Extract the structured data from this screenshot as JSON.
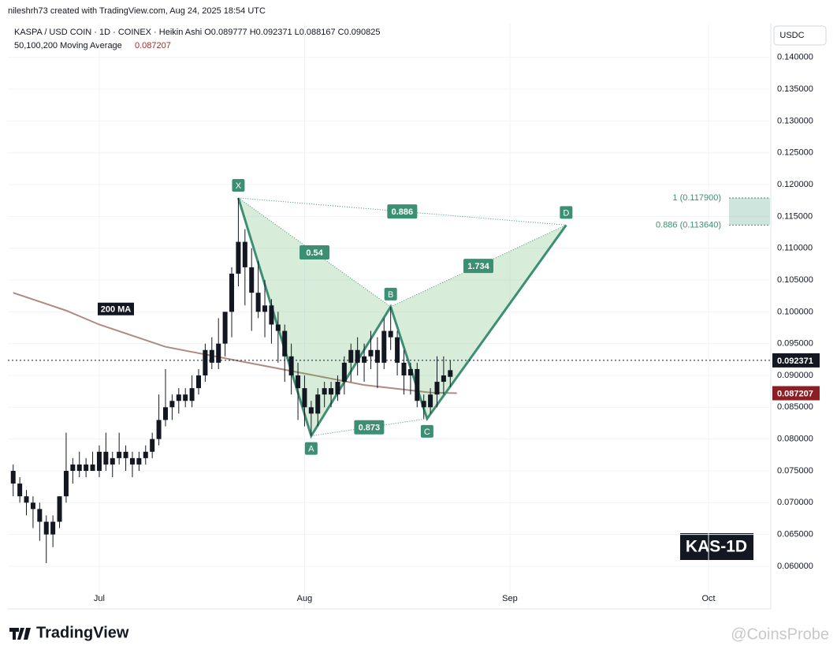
{
  "chart_data": {
    "type": "candlestick",
    "credit": "nileshrh73 created with TradingView.com, Aug 24, 2025 18:54 UTC",
    "title": "KASPA / USD COIN · 1D · COINEX · Heikin Ashi  O0.089777 H0.092371 L0.088167 C0.090825",
    "indicator": "50,100,200 Moving Average",
    "currency": "USDC",
    "badge": "KAS-1D",
    "brand": "TradingView",
    "watermark": "@CoinsProbe",
    "color": "#131722",
    "xlim": [
      -13.8,
      101.4
    ],
    "xticks": [
      {
        "value": 0,
        "label": "Jul"
      },
      {
        "value": 31,
        "label": "Aug"
      },
      {
        "value": 62,
        "label": "Sep"
      },
      {
        "value": 92,
        "label": "Oct"
      }
    ],
    "ylim": [
      0.0533,
      0.1453
    ],
    "yticks": [
      {
        "value": 0.06,
        "label": "0.060000"
      },
      {
        "value": 0.065,
        "label": "0.065000"
      },
      {
        "value": 0.07,
        "label": "0.070000"
      },
      {
        "value": 0.075,
        "label": "0.075000"
      },
      {
        "value": 0.08,
        "label": "0.080000"
      },
      {
        "value": 0.085,
        "label": "0.085000"
      },
      {
        "value": 0.09,
        "label": "0.090000"
      },
      {
        "value": 0.095,
        "label": "0.095000"
      },
      {
        "value": 0.1,
        "label": "0.100000"
      },
      {
        "value": 0.105,
        "label": "0.105000"
      },
      {
        "value": 0.11,
        "label": "0.110000"
      },
      {
        "value": 0.115,
        "label": "0.115000"
      },
      {
        "value": 0.12,
        "label": "0.120000"
      },
      {
        "value": 0.125,
        "label": "0.125000"
      },
      {
        "value": 0.13,
        "label": "0.130000"
      },
      {
        "value": 0.135,
        "label": "0.135000"
      },
      {
        "value": 0.14,
        "label": "0.140000"
      }
    ],
    "grid": true,
    "x": [
      -13,
      -12,
      -11,
      -10,
      -9,
      -8,
      -7,
      -6,
      -5,
      -4,
      -3,
      -2,
      -1,
      0,
      1,
      2,
      3,
      4,
      5,
      6,
      7,
      8,
      9,
      10,
      11,
      12,
      13,
      14,
      15,
      16,
      17,
      18,
      19,
      20,
      21,
      22,
      23,
      24,
      25,
      26,
      27,
      28,
      29,
      30,
      31,
      32,
      33,
      34,
      35,
      36,
      37,
      38,
      39,
      40,
      41,
      42,
      43,
      44,
      45,
      46,
      47,
      48,
      49,
      50,
      51,
      52,
      53
    ],
    "open": [
      0.075,
      0.073,
      0.071,
      0.07,
      0.069,
      0.067,
      0.065,
      0.067,
      0.071,
      0.075,
      0.076,
      0.075,
      0.076,
      0.075,
      0.078,
      0.076,
      0.077,
      0.078,
      0.077,
      0.076,
      0.077,
      0.078,
      0.08,
      0.083,
      0.085,
      0.086,
      0.087,
      0.086,
      0.088,
      0.09,
      0.094,
      0.092,
      0.095,
      0.1,
      0.106,
      0.111,
      0.107,
      0.103,
      0.1,
      0.101,
      0.098,
      0.097,
      0.093,
      0.09,
      0.088,
      0.085,
      0.084,
      0.087,
      0.088,
      0.087,
      0.089,
      0.092,
      0.094,
      0.092,
      0.093,
      0.094,
      0.092,
      0.097,
      0.096,
      0.092,
      0.09,
      0.091,
      0.086,
      0.085,
      0.087,
      0.089,
      0.089777
    ],
    "high": [
      0.076,
      0.074,
      0.072,
      0.071,
      0.07,
      0.068,
      0.068,
      0.071,
      0.081,
      0.077,
      0.078,
      0.077,
      0.078,
      0.079,
      0.081,
      0.078,
      0.081,
      0.079,
      0.078,
      0.078,
      0.079,
      0.081,
      0.087,
      0.091,
      0.087,
      0.088,
      0.088,
      0.09,
      0.091,
      0.095,
      0.096,
      0.099,
      0.1,
      0.107,
      0.1179,
      0.113,
      0.11,
      0.108,
      0.105,
      0.102,
      0.1,
      0.098,
      0.095,
      0.092,
      0.09,
      0.086,
      0.088,
      0.089,
      0.089,
      0.09,
      0.093,
      0.095,
      0.096,
      0.095,
      0.097,
      0.096,
      0.099,
      0.1008,
      0.097,
      0.094,
      0.092,
      0.092,
      0.087,
      0.088,
      0.093,
      0.093,
      0.092371
    ],
    "low": [
      0.071,
      0.07,
      0.068,
      0.066,
      0.064,
      0.0605,
      0.063,
      0.066,
      0.07,
      0.073,
      0.074,
      0.074,
      0.075,
      0.074,
      0.075,
      0.074,
      0.076,
      0.075,
      0.074,
      0.075,
      0.076,
      0.077,
      0.079,
      0.082,
      0.083,
      0.084,
      0.085,
      0.085,
      0.087,
      0.089,
      0.091,
      0.091,
      0.093,
      0.096,
      0.104,
      0.101,
      0.097,
      0.099,
      0.096,
      0.095,
      0.092,
      0.089,
      0.087,
      0.083,
      0.082,
      0.0805,
      0.082,
      0.085,
      0.085,
      0.086,
      0.087,
      0.089,
      0.09,
      0.089,
      0.091,
      0.088,
      0.091,
      0.094,
      0.09,
      0.087,
      0.087,
      0.085,
      0.0832,
      0.084,
      0.085,
      0.087,
      0.088167
    ],
    "close": [
      0.073,
      0.071,
      0.07,
      0.069,
      0.067,
      0.065,
      0.067,
      0.071,
      0.075,
      0.076,
      0.075,
      0.076,
      0.075,
      0.078,
      0.076,
      0.077,
      0.078,
      0.077,
      0.076,
      0.077,
      0.078,
      0.08,
      0.083,
      0.085,
      0.086,
      0.087,
      0.086,
      0.088,
      0.09,
      0.094,
      0.092,
      0.095,
      0.1,
      0.106,
      0.111,
      0.107,
      0.103,
      0.1,
      0.101,
      0.098,
      0.097,
      0.093,
      0.09,
      0.088,
      0.085,
      0.084,
      0.087,
      0.088,
      0.087,
      0.089,
      0.092,
      0.094,
      0.092,
      0.093,
      0.094,
      0.092,
      0.097,
      0.096,
      0.092,
      0.09,
      0.091,
      0.086,
      0.085,
      0.087,
      0.089,
      0.09,
      0.090825
    ],
    "ma": {
      "name": "200 MA",
      "color": "#b08a80",
      "x": [
        -13,
        -5,
        0,
        10,
        20,
        30,
        40,
        50,
        54
      ],
      "values": [
        0.103,
        0.1002,
        0.098,
        0.0945,
        0.0925,
        0.0905,
        0.0885,
        0.0873,
        0.087207
      ]
    },
    "pattern": {
      "color": "#3d8f73",
      "points": [
        {
          "label": "X",
          "x": 21,
          "y": 0.1179
        },
        {
          "label": "A",
          "x": 32,
          "y": 0.0805
        },
        {
          "label": "B",
          "x": 44,
          "y": 0.1008
        },
        {
          "label": "C",
          "x": 49.5,
          "y": 0.0832
        },
        {
          "label": "D",
          "x": 70.5,
          "y": 0.11364
        }
      ],
      "ratios": [
        0.54,
        0.886,
        0.873,
        1.734
      ]
    },
    "levels": [
      {
        "value": 0.1179,
        "label": "1 (0.117900)"
      },
      {
        "value": 0.11364,
        "label": "0.886 (0.113640)"
      }
    ]
  }
}
